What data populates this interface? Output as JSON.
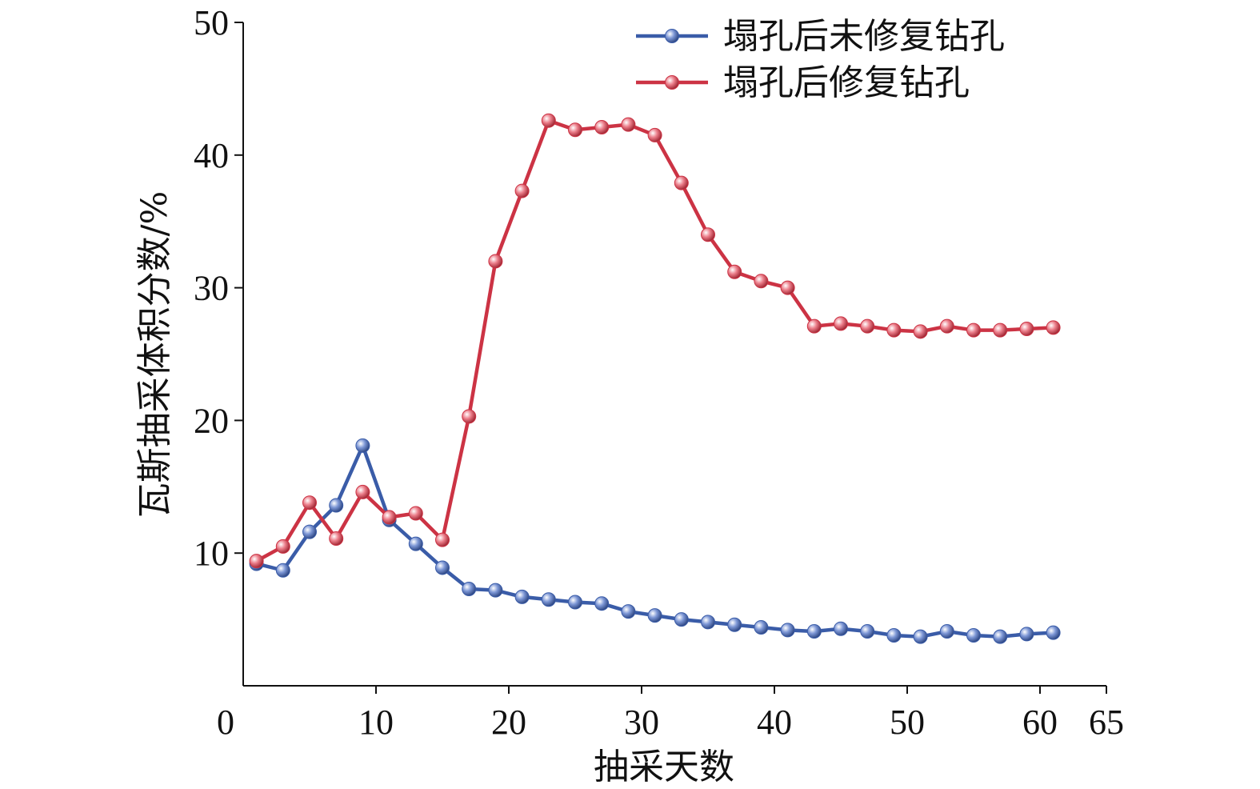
{
  "chart_data": {
    "type": "line",
    "title": "",
    "xlabel": "抽采天数",
    "ylabel": "瓦斯抽采体积分数/%",
    "xlim": [
      0,
      65
    ],
    "ylim": [
      0,
      50
    ],
    "xticks": [
      0,
      10,
      20,
      30,
      40,
      50,
      60,
      65
    ],
    "yticks": [
      10,
      20,
      30,
      40,
      50
    ],
    "grid": false,
    "legend_position": "top-right",
    "x": [
      1,
      3,
      5,
      7,
      9,
      11,
      13,
      15,
      17,
      19,
      21,
      23,
      25,
      27,
      29,
      31,
      33,
      35,
      37,
      39,
      41,
      43,
      45,
      47,
      49,
      51,
      53,
      55,
      57,
      59,
      61
    ],
    "series": [
      {
        "name": "塌孔后未修复钻孔",
        "color": "#3a5ca8",
        "values": [
          9.2,
          8.7,
          11.6,
          13.6,
          18.1,
          12.5,
          10.7,
          8.9,
          7.3,
          7.2,
          6.7,
          6.5,
          6.3,
          6.2,
          5.6,
          5.3,
          5.0,
          4.8,
          4.6,
          4.4,
          4.2,
          4.1,
          4.3,
          4.1,
          3.8,
          3.7,
          4.1,
          3.8,
          3.7,
          3.9,
          4.0
        ]
      },
      {
        "name": "塌孔后修复钻孔",
        "color": "#cc3344",
        "values": [
          9.4,
          10.5,
          13.8,
          11.1,
          14.6,
          12.7,
          13.0,
          11.0,
          20.3,
          32.0,
          37.3,
          42.6,
          41.9,
          42.1,
          42.3,
          41.5,
          37.9,
          34.0,
          31.2,
          30.5,
          30.0,
          27.1,
          27.3,
          27.1,
          26.8,
          26.7,
          27.1,
          26.8,
          26.8,
          26.9,
          27.0
        ]
      }
    ]
  }
}
